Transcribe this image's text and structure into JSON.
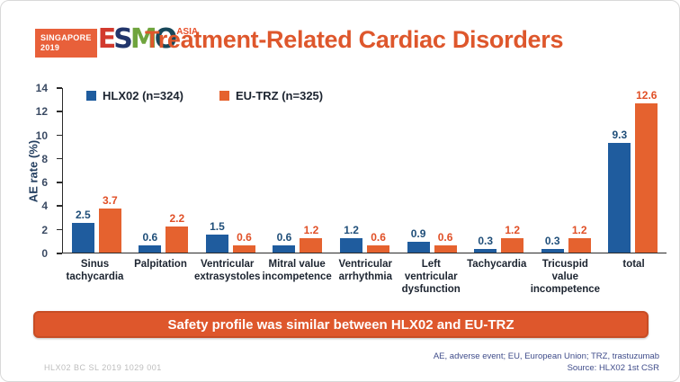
{
  "slide": {
    "title": "Treatment-Related Cardiac Disorders",
    "accent_color": "#DE572C",
    "logo": {
      "badge_line1": "SINGAPORE",
      "badge_line2": "2019",
      "badge_color": "#E8603A",
      "letters": [
        {
          "ch": "E",
          "color": "#D23A2E"
        },
        {
          "ch": "S",
          "color": "#21356B"
        },
        {
          "ch": "M",
          "color": "#6FA43D"
        },
        {
          "ch": "O",
          "color": "#17475A"
        }
      ],
      "suffix": "ASIA"
    },
    "banner": "Safety profile was similar between HLX02 and EU-TRZ",
    "footer_left": "HLX02 BC SL 2019 1029 001",
    "footer_right_line1": "AE, adverse event; EU, European Union; TRZ, trastuzumab",
    "footer_right_line2": "Source: HLX02 1st CSR"
  },
  "chart_data": {
    "type": "bar",
    "title": "Treatment-Related Cardiac Disorders",
    "categories": [
      "Sinus tachycardia",
      "Palpitation",
      "Ventricular extrasystoles",
      "Mitral value incompetence",
      "Ventricular arrhythmia",
      "Left ventricular dysfunction",
      "Tachycardia",
      "Tricuspid value incompetence",
      "total"
    ],
    "series": [
      {
        "name": "HLX02 (n=324)",
        "color": "#1F5C9E",
        "label_color": "#1F4E79",
        "values": [
          2.5,
          0.6,
          1.5,
          0.6,
          1.2,
          0.9,
          0.3,
          0.3,
          9.3
        ]
      },
      {
        "name": "EU-TRZ (n=325)",
        "color": "#E5622F",
        "label_color": "#E04F26",
        "values": [
          3.7,
          2.2,
          0.6,
          1.2,
          0.6,
          0.6,
          1.2,
          1.2,
          12.6
        ]
      }
    ],
    "xlabel": "",
    "ylabel": "AE rate (%)",
    "ylim": [
      0,
      14
    ],
    "yticks": [
      0,
      2,
      4,
      6,
      8,
      10,
      12,
      14
    ],
    "grid": false,
    "legend_position": "top-left-inside"
  }
}
